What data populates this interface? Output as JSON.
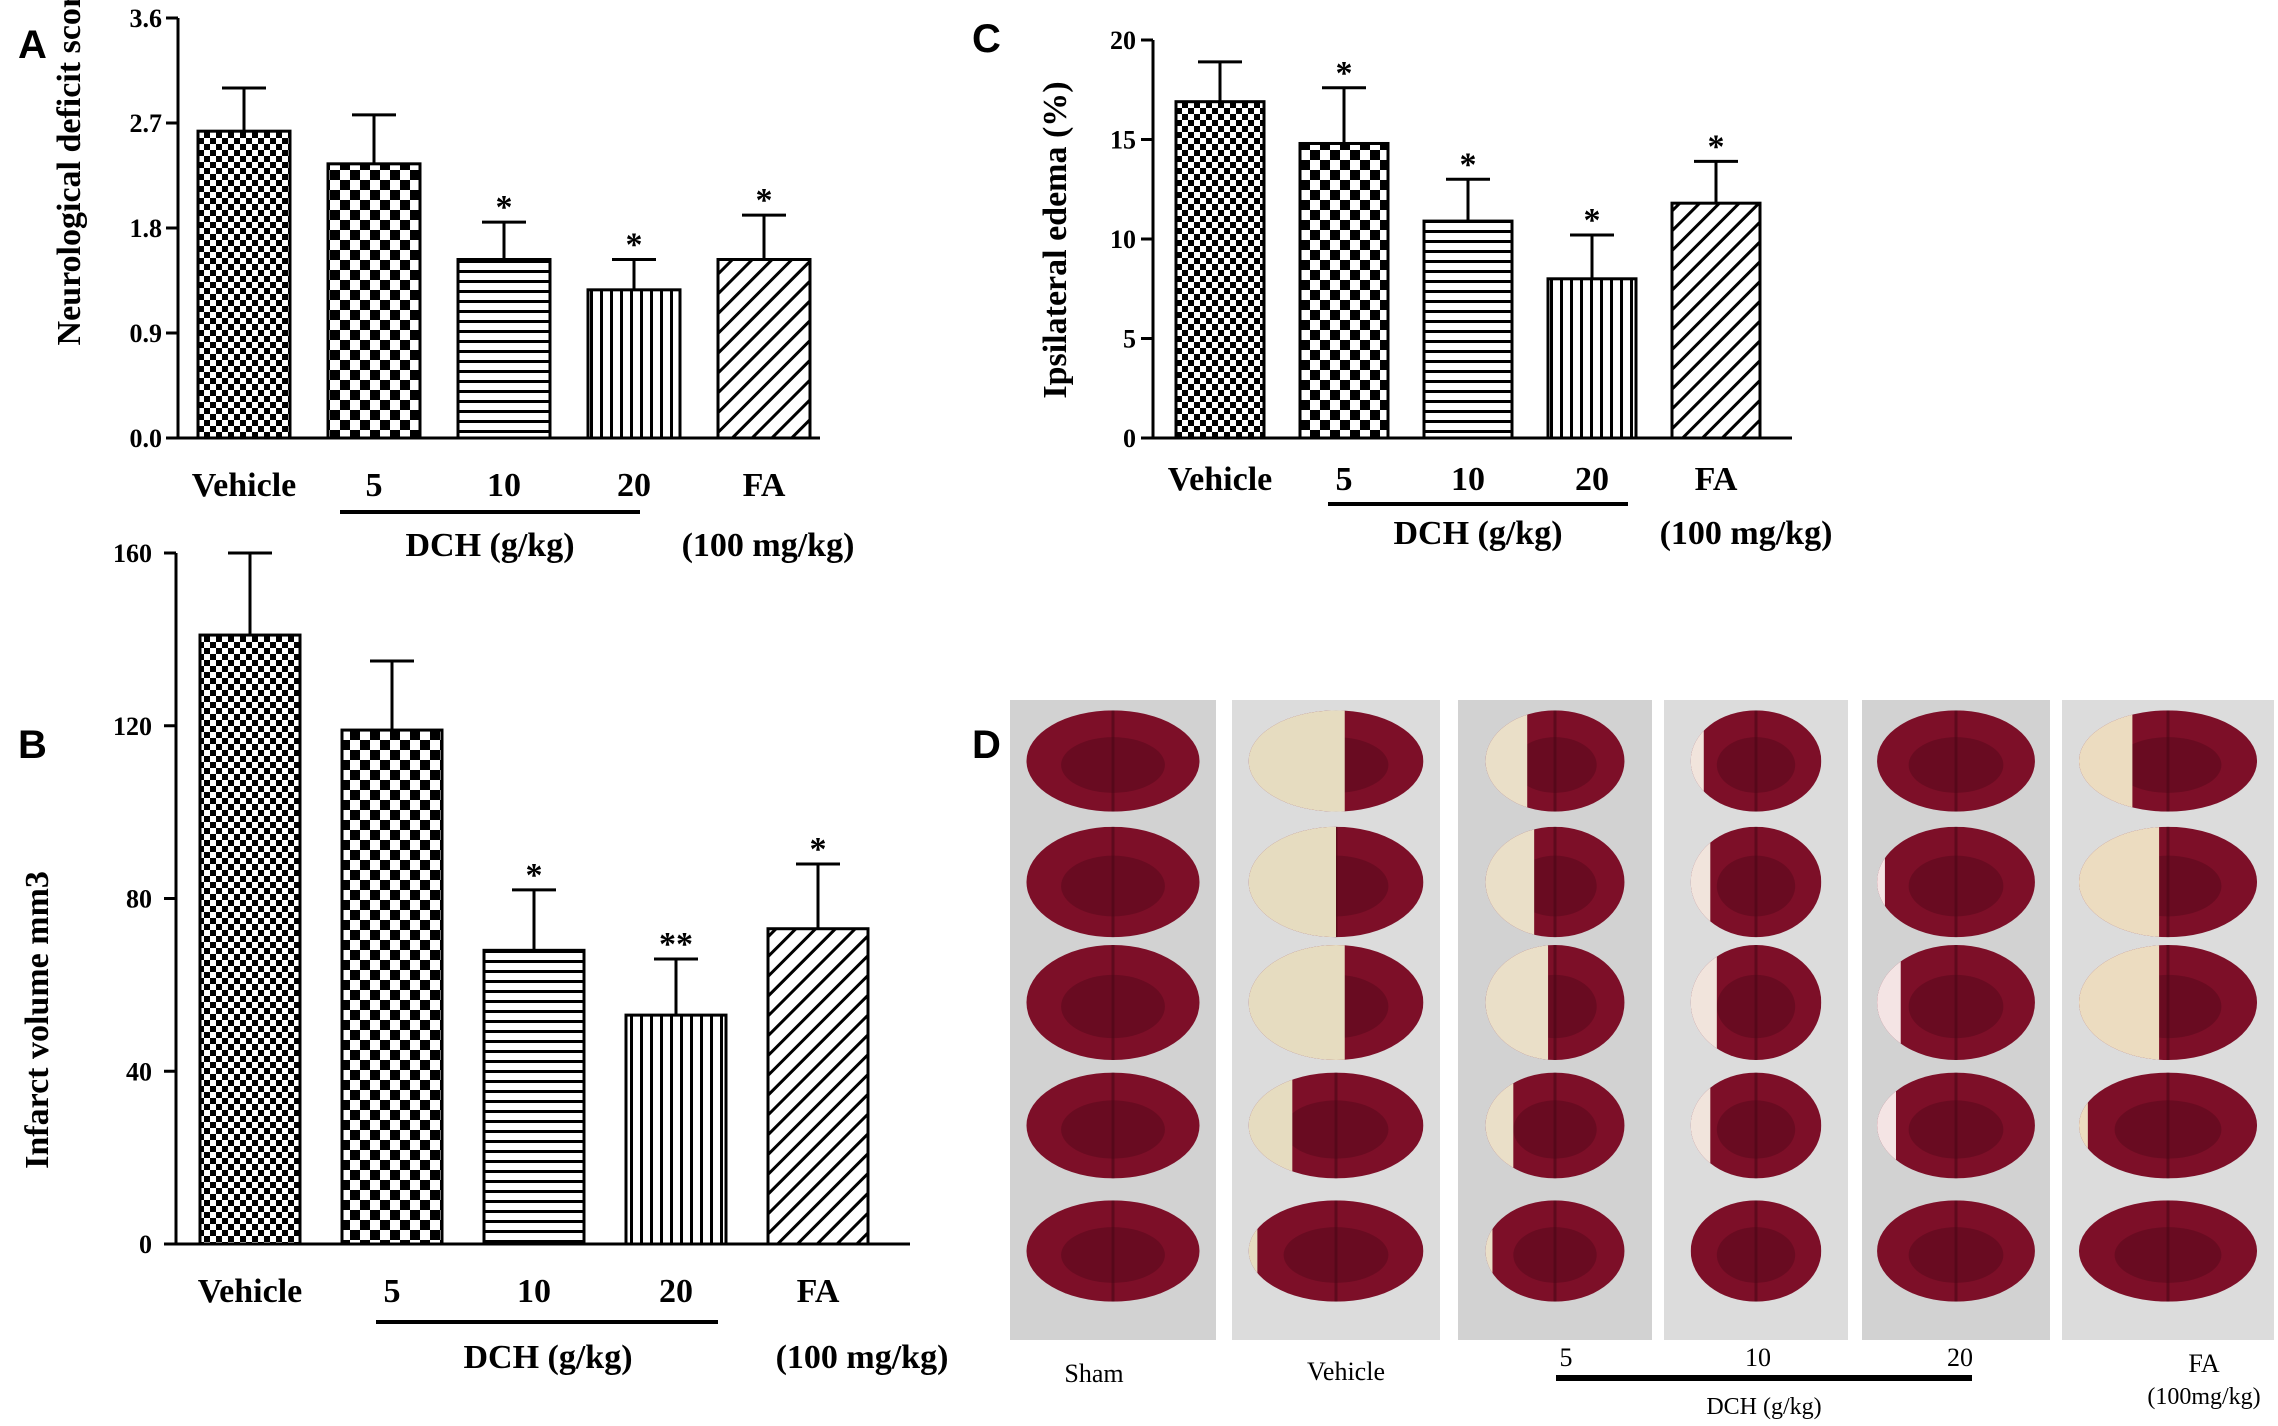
{
  "chart_data": [
    {
      "panel": "A",
      "type": "bar",
      "ylabel": "Neurological deficit score",
      "ylim": [
        0,
        3.6
      ],
      "yticks": [
        "0.0",
        "0.9",
        "1.8",
        "2.7",
        "3.6"
      ],
      "categories": [
        "Vehicle",
        "5",
        "10",
        "20",
        "FA"
      ],
      "values": [
        2.63,
        2.35,
        1.53,
        1.27,
        1.53
      ],
      "errors": [
        0.37,
        0.42,
        0.32,
        0.26,
        0.38
      ],
      "significance": [
        "",
        "",
        "*",
        "*",
        "*"
      ],
      "group_label": "DCH (g/kg)",
      "fa_dose": "(100 mg/kg)"
    },
    {
      "panel": "B",
      "type": "bar",
      "ylabel": "Infarct volume mm3",
      "ylim": [
        0,
        160
      ],
      "yticks": [
        "0",
        "40",
        "80",
        "120",
        "160"
      ],
      "categories": [
        "Vehicle",
        "5",
        "10",
        "20",
        "FA"
      ],
      "values": [
        141,
        119,
        68,
        53,
        73
      ],
      "errors": [
        19,
        16,
        14,
        13,
        15
      ],
      "significance": [
        "",
        "",
        "*",
        "**",
        "*"
      ],
      "group_label": "DCH (g/kg)",
      "fa_dose": "(100 mg/kg)"
    },
    {
      "panel": "C",
      "type": "bar",
      "ylabel": "Ipsilateral edema (%)",
      "ylim": [
        0,
        20
      ],
      "yticks": [
        "0",
        "5",
        "10",
        "15",
        "20"
      ],
      "categories": [
        "Vehicle",
        "5",
        "10",
        "20",
        "FA"
      ],
      "values": [
        16.9,
        14.8,
        10.9,
        8.0,
        11.8
      ],
      "errors": [
        2.0,
        2.8,
        2.1,
        2.2,
        2.1
      ],
      "significance": [
        "",
        "*",
        "*",
        "*",
        "*"
      ],
      "group_label": "DCH (g/kg)",
      "fa_dose": "(100 mg/kg)"
    }
  ],
  "photo_panel": {
    "panel": "D",
    "columns": [
      "Sham",
      "Vehicle",
      "5",
      "10",
      "20",
      "FA"
    ],
    "group_label": "DCH (g/kg)",
    "fa_dose": "(100mg/kg)",
    "slices_per_column": 5
  },
  "colors": {
    "tissue_red": "#7d0f28",
    "tissue_dark": "#5a0a1c",
    "infarct_pale": "#e8dcc0",
    "background_photo": "#d6d6d6"
  }
}
